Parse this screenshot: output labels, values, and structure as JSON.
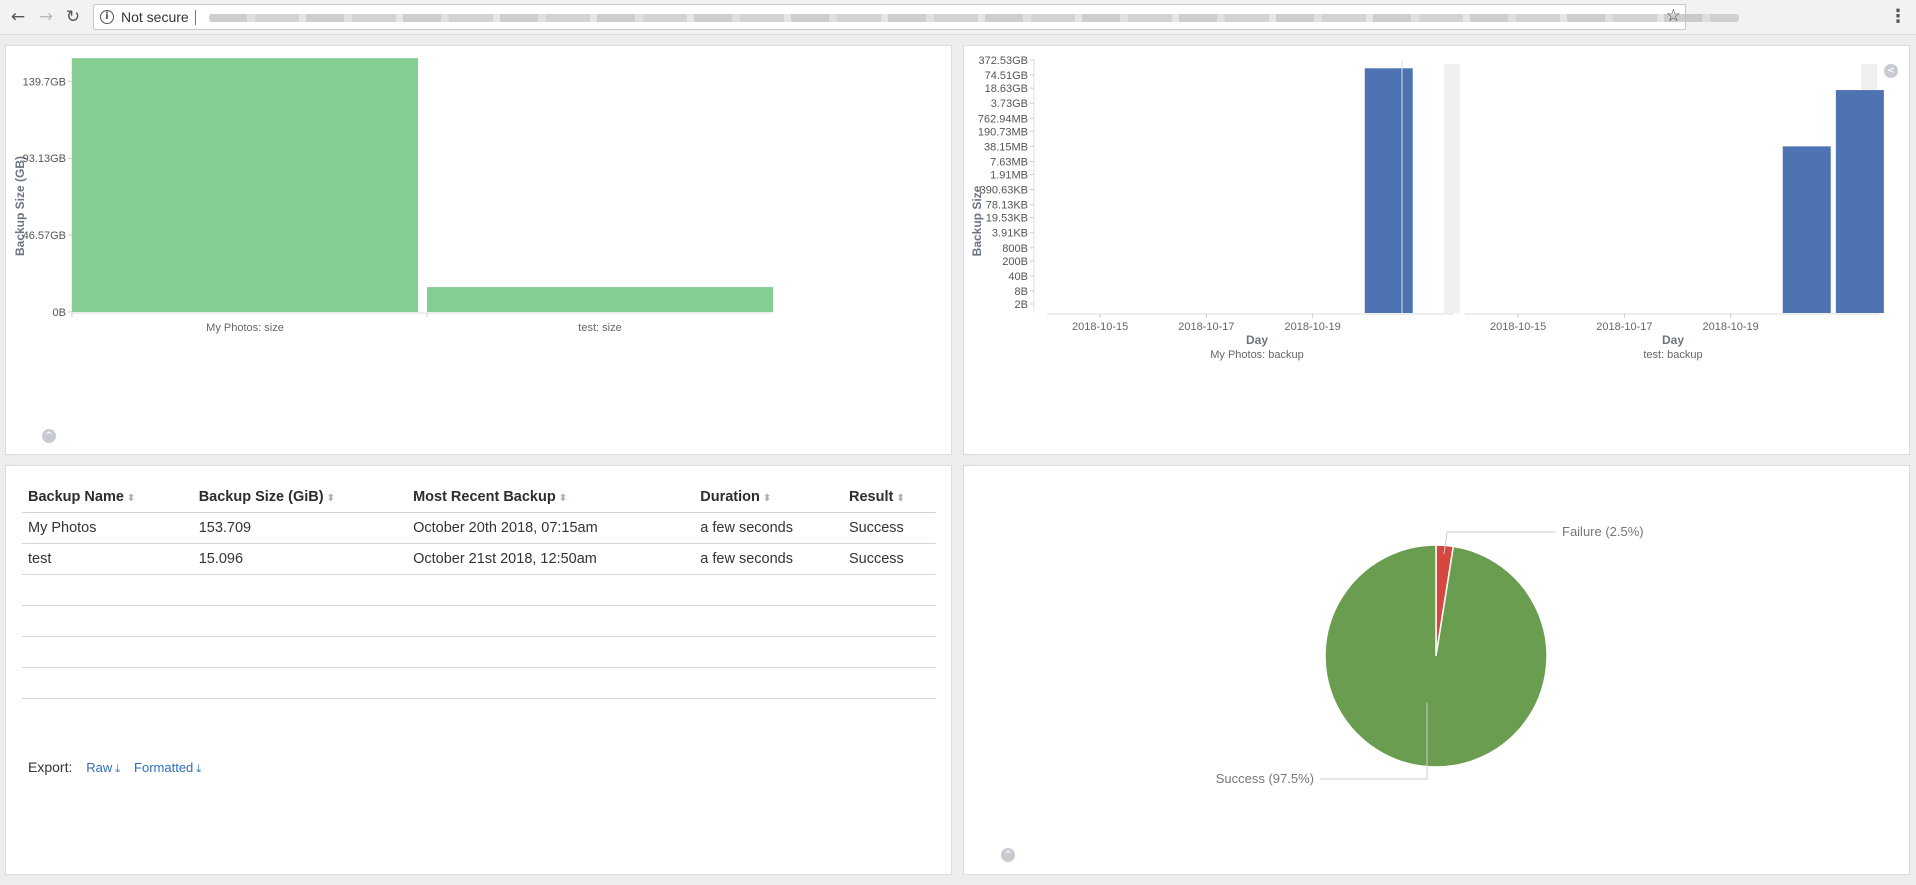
{
  "browser": {
    "security_label": "Not secure",
    "icons": {
      "back": "back-arrow-icon",
      "forward": "forward-arrow-icon",
      "reload": "reload-icon",
      "info": "info-icon",
      "star": "bookmark-star-icon",
      "menu": "browser-menu-icon"
    }
  },
  "size_chart": {
    "chart_data": {
      "type": "bar",
      "categories": [
        "My Photos: size",
        "test: size"
      ],
      "values_gb": [
        153.709,
        15.096
      ],
      "ylabel": "Backup Size (GB)",
      "yticks": [
        "0B",
        "46.57GB",
        "93.13GB",
        "139.7GB"
      ],
      "ytick_values": [
        0,
        46.57,
        93.13,
        139.7
      ],
      "ylim": [
        0,
        155
      ],
      "color": "#86cd91",
      "grid": false
    }
  },
  "backup_chart": {
    "chart_data": {
      "type": "bar",
      "scale": "log",
      "ylabel": "Backup Size",
      "yticks": [
        "2B",
        "8B",
        "40B",
        "200B",
        "800B",
        "3.91KB",
        "19.53KB",
        "78.13KB",
        "390.63KB",
        "1.91MB",
        "7.63MB",
        "38.15MB",
        "190.73MB",
        "762.94MB",
        "3.73GB",
        "18.63GB",
        "74.51GB",
        "372.53GB"
      ],
      "color": "#4e73b2",
      "xlabel": "Day",
      "xticks": [
        "2018-10-15",
        "2018-10-17",
        "2018-10-19"
      ],
      "facets": [
        {
          "label": "My Photos: backup",
          "bars": [
            {
              "x": "2018-10-20",
              "value_gb": 153.709
            }
          ]
        },
        {
          "label": "test: backup",
          "bars": [
            {
              "x": "2018-10-20",
              "value_mb": 38.15
            },
            {
              "x": "2018-10-21",
              "value_gb": 15.096
            }
          ]
        }
      ]
    }
  },
  "table": {
    "columns": [
      "Backup Name",
      "Backup Size (GiB)",
      "Most Recent Backup",
      "Duration",
      "Result"
    ],
    "rows": [
      [
        "My Photos",
        "153.709",
        "October 20th 2018, 07:15am",
        "a few seconds",
        "Success"
      ],
      [
        "test",
        "15.096",
        "October 21st 2018, 12:50am",
        "a few seconds",
        "Success"
      ]
    ],
    "export_label": "Export:",
    "export_raw": "Raw",
    "export_formatted": "Formatted"
  },
  "result_pie": {
    "chart_data": {
      "type": "pie",
      "slices": [
        {
          "label": "Failure (2.5%)",
          "value": 2.5,
          "color": "#d6473d"
        },
        {
          "label": "Success (97.5%)",
          "value": 97.5,
          "color": "#6a9d4f"
        }
      ]
    }
  }
}
